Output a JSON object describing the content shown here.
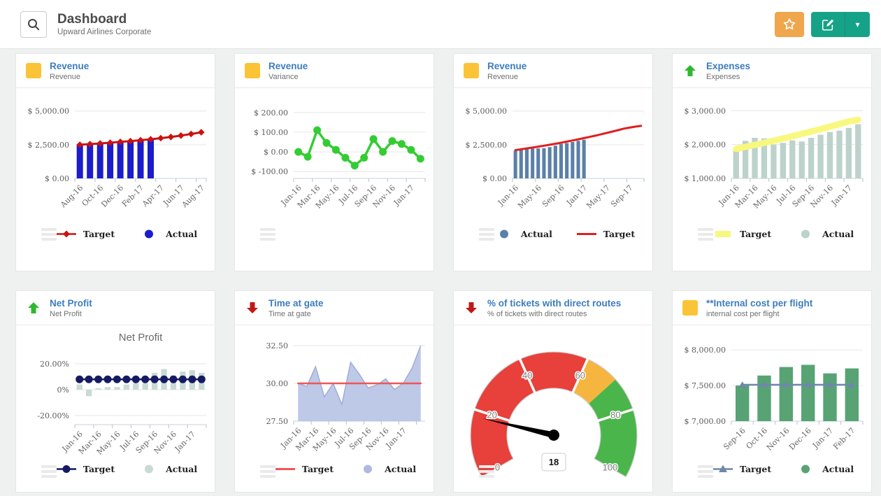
{
  "header": {
    "title": "Dashboard",
    "subtitle": "Upward Airlines Corporate",
    "search_icon": "magnifier",
    "favorite_icon": "star",
    "edit_icon": "pencil-square",
    "dropdown_icon": "caret-down"
  },
  "colors": {
    "page_bg": "#eff1f1",
    "card_bg": "#ffffff",
    "title_blue": "#3c7dbf",
    "button_orange": "#f0a64c",
    "button_green": "#16a287",
    "icon_yellow": "#fbc437",
    "icon_arrow_up_green": "#2eb82e",
    "icon_arrow_down_red": "#c01818"
  },
  "cards": [
    {
      "id": "revenue-1",
      "title": "Revenue",
      "subtitle": "Revenue",
      "icon": "yellow-square",
      "legend": [
        {
          "label": "Target",
          "marker": "line-diamond",
          "color": "#cc1111"
        },
        {
          "label": "Actual",
          "marker": "circle",
          "color": "#1c1ccd"
        }
      ],
      "chart_data": {
        "type": "bar+line",
        "categories": [
          "Aug-16",
          "Sep-16",
          "Oct-16",
          "Nov-16",
          "Dec-16",
          "Jan-17",
          "Feb-17",
          "Mar-17",
          "Apr-17",
          "May-17",
          "Jun-17",
          "Jul-17",
          "Aug-17"
        ],
        "x_label_indices": [
          0,
          2,
          4,
          6,
          8,
          10,
          12
        ],
        "y_ticks": [
          {
            "value": 0,
            "label": "$ 0.00"
          },
          {
            "value": 2500,
            "label": "$ 2,500.00"
          },
          {
            "value": 5000,
            "label": "$ 5,000.00"
          }
        ],
        "ylim": [
          0,
          5400
        ],
        "series": [
          {
            "name": "Actual",
            "type": "bar",
            "color": "#1c1ccd",
            "values": [
              2490,
              2530,
              2575,
              2625,
              2680,
              2740,
              2800,
              2870,
              null,
              null,
              null,
              null,
              null
            ]
          },
          {
            "name": "Target",
            "type": "line",
            "color": "#cc1111",
            "marker": "diamond",
            "width": 3,
            "values": [
              2500,
              2545,
              2595,
              2650,
              2710,
              2770,
              2835,
              2905,
              2985,
              3075,
              3180,
              3295,
              3420
            ]
          }
        ]
      }
    },
    {
      "id": "revenue-variance",
      "title": "Revenue",
      "subtitle": "Variance",
      "icon": "yellow-square",
      "legend": [],
      "chart_data": {
        "type": "line",
        "categories": [
          "Jan-16",
          "Feb-16",
          "Mar-16",
          "Apr-16",
          "May-16",
          "Jun-16",
          "Jul-16",
          "Aug-16",
          "Sep-16",
          "Oct-16",
          "Nov-16",
          "Dec-16",
          "Jan-17",
          "Feb-17"
        ],
        "x_label_indices": [
          0,
          2,
          4,
          6,
          8,
          10,
          12
        ],
        "y_ticks": [
          {
            "value": -100,
            "label": "$ -100.00"
          },
          {
            "value": 0,
            "label": "$ 0.00"
          },
          {
            "value": 100,
            "label": "$ 100.00"
          },
          {
            "value": 200,
            "label": "$ 200.00"
          }
        ],
        "ylim": [
          -135,
          235
        ],
        "series": [
          {
            "name": "Variance",
            "type": "line",
            "color": "#33cc33",
            "marker": "circle",
            "marker_size": 5.5,
            "width": 3.5,
            "values": [
              0,
              -25,
              110,
              45,
              10,
              -30,
              -70,
              -30,
              65,
              0,
              55,
              40,
              10,
              -35
            ]
          }
        ]
      }
    },
    {
      "id": "revenue-2",
      "title": "Revenue",
      "subtitle": "Revenue",
      "icon": "yellow-square",
      "legend": [
        {
          "label": "Actual",
          "marker": "circle",
          "color": "#5b80a8"
        },
        {
          "label": "Target",
          "marker": "line",
          "color": "#e01f1f"
        }
      ],
      "chart_data": {
        "type": "bar+line",
        "categories": [
          "Jan-16",
          "Feb-16",
          "Mar-16",
          "Apr-16",
          "May-16",
          "Jun-16",
          "Jul-16",
          "Aug-16",
          "Sep-16",
          "Oct-16",
          "Nov-16",
          "Dec-16",
          "Jan-17",
          "Feb-17",
          "Mar-17",
          "Apr-17",
          "May-17",
          "Jun-17",
          "Jul-17",
          "Aug-17",
          "Sep-17",
          "Oct-17",
          "Nov-17"
        ],
        "x_label_indices": [
          0,
          4,
          8,
          12,
          16,
          20
        ],
        "y_ticks": [
          {
            "value": 0,
            "label": "$ 0.00"
          },
          {
            "value": 2500,
            "label": "$ 2,500.00"
          },
          {
            "value": 5000,
            "label": "$ 5,000.00"
          }
        ],
        "ylim": [
          0,
          5400
        ],
        "series": [
          {
            "name": "Actual",
            "type": "bar",
            "color": "#5b80a8",
            "values": [
              2060,
              2100,
              2230,
              2215,
              2225,
              2245,
              2320,
              2430,
              2560,
              2620,
              2700,
              2790,
              2870,
              null,
              null,
              null,
              null,
              null,
              null,
              null,
              null,
              null,
              null
            ]
          },
          {
            "name": "Target",
            "type": "line",
            "color": "#e01f1f",
            "marker": "none",
            "width": 3,
            "values": [
              2100,
              2160,
              2225,
              2290,
              2355,
              2425,
              2495,
              2570,
              2650,
              2730,
              2815,
              2900,
              2990,
              3080,
              3175,
              3275,
              3375,
              3480,
              3585,
              3695,
              3770,
              3840,
              3900
            ]
          }
        ]
      }
    },
    {
      "id": "expenses",
      "title": "Expenses",
      "subtitle": "Expenses",
      "icon": "arrow-up",
      "legend": [
        {
          "label": "Target",
          "marker": "rect",
          "color": "#f8f87e"
        },
        {
          "label": "Actual",
          "marker": "circle",
          "color": "#bcd2cb"
        }
      ],
      "chart_data": {
        "type": "bar+line",
        "categories": [
          "Jan-16",
          "Feb-16",
          "Mar-16",
          "Apr-16",
          "May-16",
          "Jun-16",
          "Jul-16",
          "Aug-16",
          "Sep-16",
          "Oct-16",
          "Nov-16",
          "Dec-16",
          "Jan-17",
          "Feb-17"
        ],
        "x_label_indices": [
          0,
          2,
          4,
          6,
          8,
          10,
          12
        ],
        "y_ticks": [
          {
            "value": 1000,
            "label": "$ 1,000.00"
          },
          {
            "value": 2000,
            "label": "$ 2,000.00"
          },
          {
            "value": 3000,
            "label": "$ 3,000.00"
          }
        ],
        "ylim": [
          1000,
          3150
        ],
        "series": [
          {
            "name": "Actual",
            "type": "bar",
            "color": "#bcd2cb",
            "values": [
              1820,
              2110,
              2200,
              2180,
              2000,
              2050,
              2120,
              2090,
              2200,
              2290,
              2370,
              2410,
              2490,
              2600
            ]
          },
          {
            "name": "Target",
            "type": "line",
            "color": "#f8f87e",
            "marker": "none",
            "width": 9,
            "values": [
              1870,
              1930,
              1990,
              2050,
              2115,
              2180,
              2245,
              2315,
              2385,
              2455,
              2530,
              2605,
              2680,
              2730
            ]
          }
        ]
      }
    },
    {
      "id": "net-profit",
      "title": "Net Profit",
      "subtitle": "Net Profit",
      "icon": "arrow-up",
      "legend": [
        {
          "label": "Target",
          "marker": "line-circle",
          "color": "#151a63"
        },
        {
          "label": "Actual",
          "marker": "circle",
          "color": "#c9dad6"
        }
      ],
      "chart_data": {
        "type": "bar+line",
        "title": "Net Profit",
        "categories": [
          "Jan-16",
          "Feb-16",
          "Mar-16",
          "Apr-16",
          "May-16",
          "Jun-16",
          "Jul-16",
          "Aug-16",
          "Sep-16",
          "Oct-16",
          "Nov-16",
          "Dec-16",
          "Jan-17",
          "Feb-17"
        ],
        "x_label_indices": [
          0,
          2,
          4,
          6,
          8,
          10,
          12
        ],
        "y_ticks": [
          {
            "value": -20,
            "label": "-20.00%"
          },
          {
            "value": 0,
            "label": "0%"
          },
          {
            "value": 20,
            "label": "20.00%"
          }
        ],
        "ylim": [
          -27,
          27
        ],
        "series": [
          {
            "name": "Actual",
            "type": "bar",
            "color": "#c9dad6",
            "values": [
              4,
              -5,
              1,
              2,
              2,
              4,
              5,
              5,
              13,
              16,
              11,
              14,
              15,
              13
            ]
          },
          {
            "name": "Target",
            "type": "line",
            "color": "#151a63",
            "marker": "circle",
            "marker_size": 5.5,
            "width": 2.5,
            "values": [
              8,
              8,
              8,
              8,
              8,
              8,
              8,
              8,
              8,
              8,
              8,
              8,
              8,
              8
            ]
          }
        ]
      }
    },
    {
      "id": "time-at-gate",
      "title": "Time at gate",
      "subtitle": "Time at gate",
      "icon": "arrow-down",
      "legend": [
        {
          "label": "Target",
          "marker": "line",
          "color": "#f25555"
        },
        {
          "label": "Actual",
          "marker": "circle",
          "color": "#aebadf"
        }
      ],
      "chart_data": {
        "type": "area+line",
        "categories": [
          "Jan-16",
          "Feb-16",
          "Mar-16",
          "Apr-16",
          "May-16",
          "Jun-16",
          "Jul-16",
          "Aug-16",
          "Sep-16",
          "Oct-16",
          "Nov-16",
          "Dec-16",
          "Jan-17",
          "Feb-17",
          "Mar-17"
        ],
        "x_label_indices": [
          0,
          2,
          4,
          6,
          8,
          10,
          12
        ],
        "y_ticks": [
          {
            "value": 27.5,
            "label": "27.50"
          },
          {
            "value": 30,
            "label": "30.00"
          },
          {
            "value": 32.5,
            "label": "32.50"
          }
        ],
        "ylim": [
          27.5,
          32.5
        ],
        "series": [
          {
            "name": "Actual",
            "type": "area",
            "color": "#b3bfe4",
            "stroke": "#9fadd9",
            "values": [
              30.0,
              29.8,
              31.1,
              29.1,
              30.0,
              28.6,
              31.4,
              30.6,
              29.7,
              29.9,
              30.3,
              29.6,
              30.0,
              31.0,
              32.5
            ]
          },
          {
            "name": "Target",
            "type": "line",
            "color": "#f25555",
            "marker": "none",
            "width": 2.5,
            "values": [
              30,
              30,
              30,
              30,
              30,
              30,
              30,
              30,
              30,
              30,
              30,
              30,
              30,
              30,
              30
            ]
          }
        ]
      }
    },
    {
      "id": "direct-routes",
      "title": "% of tickets with direct routes",
      "subtitle": "% of tickets with direct routes",
      "icon": "arrow-down",
      "legend": [],
      "chart_data": {
        "type": "gauge",
        "min": 0,
        "max": 100,
        "value": 18,
        "start_angle": 210,
        "end_angle": -30,
        "tick_labels": [
          0,
          20,
          40,
          60,
          80,
          100
        ],
        "segments": [
          {
            "from": 0,
            "to": 60,
            "color": "#e8403a"
          },
          {
            "from": 60,
            "to": 70,
            "color": "#f5b53e"
          },
          {
            "from": 70,
            "to": 100,
            "color": "#4ab54a"
          }
        ]
      }
    },
    {
      "id": "internal-cost",
      "title": "**Internal cost per flight",
      "subtitle": "internal cost per flight",
      "icon": "yellow-square",
      "legend": [
        {
          "label": "Target",
          "marker": "line-triangle",
          "color": "#6f87ab"
        },
        {
          "label": "Actual",
          "marker": "circle",
          "color": "#57a374"
        }
      ],
      "chart_data": {
        "type": "bar+line",
        "categories": [
          "Sep-16",
          "Oct-16",
          "Nov-16",
          "Dec-16",
          "Jan-17",
          "Feb-17"
        ],
        "x_label_indices": [
          0,
          1,
          2,
          3,
          4,
          5
        ],
        "y_ticks": [
          {
            "value": 7000,
            "label": "$ 7,000.00"
          },
          {
            "value": 7500,
            "label": "$ 7,500.00"
          },
          {
            "value": 8000,
            "label": "$ 8,000.00"
          }
        ],
        "ylim": [
          7000,
          8060
        ],
        "series": [
          {
            "name": "Actual",
            "type": "bar",
            "color": "#57a374",
            "values": [
              7500,
              7640,
              7760,
              7790,
              7670,
              7740
            ]
          },
          {
            "name": "Target",
            "type": "line",
            "color": "#6f87ab",
            "marker": "triangle",
            "width": 2.5,
            "values": [
              7510,
              7510,
              7510,
              7510,
              7510,
              7510
            ]
          }
        ]
      }
    }
  ]
}
